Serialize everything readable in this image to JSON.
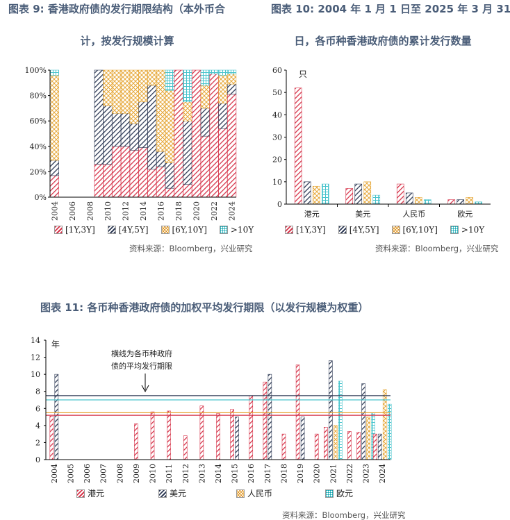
{
  "chart_data": [
    {
      "type": "bar",
      "stacked": true,
      "title_line1": "图表 9:  香港政府债的发行期限结构（本外币合",
      "title_line2": "计，按发行规模计算",
      "categories": [
        "2004",
        "2005",
        "2006",
        "2007",
        "2008",
        "2009",
        "2010",
        "2011",
        "2012",
        "2013",
        "2014",
        "2015",
        "2016",
        "2017",
        "2018",
        "2019",
        "2020",
        "2021",
        "2022",
        "2023",
        "2024"
      ],
      "xticks": [
        "2004",
        "2006",
        "2008",
        "2010",
        "2012",
        "2014",
        "2016",
        "2018",
        "2020",
        "2022",
        "2024"
      ],
      "ylim": [
        0,
        100
      ],
      "yticks": [
        "0%",
        "20%",
        "40%",
        "60%",
        "80%",
        "100%"
      ],
      "series": [
        {
          "name": "[1Y,3Y]",
          "color": "#d6344a",
          "values": [
            17,
            0,
            0,
            0,
            0,
            26,
            26,
            40,
            40,
            37,
            39,
            22,
            24,
            7,
            100,
            10,
            100,
            48,
            97,
            54,
            81
          ]
        },
        {
          "name": "[4Y,5Y]",
          "color": "#2e3a55",
          "values": [
            12,
            0,
            0,
            0,
            0,
            74,
            46,
            26,
            26,
            21,
            36,
            66,
            12,
            20,
            0,
            50,
            0,
            22,
            0,
            20,
            8
          ]
        },
        {
          "name": "[6Y,10Y]",
          "color": "#e6a83a",
          "values": [
            67,
            0,
            0,
            0,
            0,
            0,
            28,
            34,
            34,
            42,
            25,
            12,
            64,
            57,
            0,
            15,
            0,
            18,
            0,
            22,
            8
          ]
        },
        {
          "name": ">10Y",
          "color": "#49c4cc",
          "values": [
            4,
            0,
            0,
            0,
            0,
            0,
            0,
            0,
            0,
            0,
            0,
            0,
            0,
            16,
            0,
            25,
            0,
            12,
            3,
            4,
            3
          ]
        }
      ],
      "legend": "bottom",
      "source": "资料来源：Bloomberg，兴业研究"
    },
    {
      "type": "bar",
      "title_line1": "图表 10: 2004 年 1 月 1 日至 2025 年 3 月 31",
      "title_line2": "日，各币种香港政府债的累计发行数量",
      "ylabel": "只",
      "categories": [
        "港元",
        "美元",
        "人民币",
        "欧元"
      ],
      "ylim": [
        0,
        60
      ],
      "yticks": [
        "0",
        "10",
        "20",
        "30",
        "40",
        "50",
        "60"
      ],
      "series": [
        {
          "name": "[1Y,3Y]",
          "color": "#d6344a",
          "values": [
            52,
            7,
            9,
            2
          ]
        },
        {
          "name": "[4Y,5Y]",
          "color": "#2e3a55",
          "values": [
            10,
            9,
            5,
            2
          ]
        },
        {
          "name": "[6Y,10Y]",
          "color": "#e6a83a",
          "values": [
            8,
            10,
            3,
            3
          ]
        },
        {
          "name": ">10Y",
          "color": "#49c4cc",
          "values": [
            9,
            4,
            2,
            1
          ]
        }
      ],
      "legend": "bottom",
      "source": "资料来源：Bloomberg，兴业研究"
    },
    {
      "type": "bar",
      "title": "图表 11: 各币种香港政府债的加权平均发行期限（以发行规模为权重）",
      "ylabel": "年",
      "categories": [
        "2004",
        "2005",
        "2006",
        "2007",
        "2008",
        "2009",
        "2010",
        "2011",
        "2012",
        "2013",
        "2014",
        "2015",
        "2016",
        "2017",
        "2018",
        "2019",
        "2020",
        "2021",
        "2022",
        "2023",
        "2024"
      ],
      "ylim": [
        0,
        14
      ],
      "yticks": [
        "0",
        "2",
        "4",
        "6",
        "8",
        "10",
        "12",
        "14"
      ],
      "series": [
        {
          "name": "港元",
          "color": "#d6344a",
          "values": [
            5.1,
            0,
            0,
            0,
            0,
            4.2,
            5.6,
            5.7,
            2.8,
            6.3,
            5.4,
            5.9,
            7.5,
            9.1,
            3.0,
            11.1,
            3.0,
            3.8,
            3.3,
            3.2,
            3.0
          ]
        },
        {
          "name": "美元",
          "color": "#2e3a55",
          "values": [
            10,
            0,
            0,
            0,
            0,
            0,
            0,
            0,
            0,
            0,
            0,
            5.0,
            0,
            10,
            0,
            5.0,
            0,
            11.6,
            0,
            8.9,
            3.0
          ]
        },
        {
          "name": "人民币",
          "color": "#e6a83a",
          "values": [
            0,
            0,
            0,
            0,
            0,
            0,
            0,
            0,
            0,
            0,
            0,
            0,
            0,
            0,
            0,
            0,
            0,
            4.0,
            0,
            5.0,
            8.2
          ]
        },
        {
          "name": "欧元",
          "color": "#49c4cc",
          "values": [
            0,
            0,
            0,
            0,
            0,
            0,
            0,
            0,
            0,
            0,
            0,
            0,
            0,
            0,
            0,
            0,
            0,
            9.2,
            0,
            5.5,
            6.5
          ]
        }
      ],
      "average_lines": [
        {
          "name": "港元",
          "color": "#d6344a",
          "value": 5.2
        },
        {
          "name": "美元",
          "color": "#2e3a55",
          "value": 7.5
        },
        {
          "name": "人民币",
          "color": "#e6a83a",
          "value": 5.5
        },
        {
          "name": "欧元",
          "color": "#49c4cc",
          "value": 7.0
        }
      ],
      "annotation_line1": "横线为各币种政府",
      "annotation_line2": "债的平均发行期限",
      "legend": "bottom",
      "source": "资料来源：Bloomberg，兴业研究"
    }
  ]
}
